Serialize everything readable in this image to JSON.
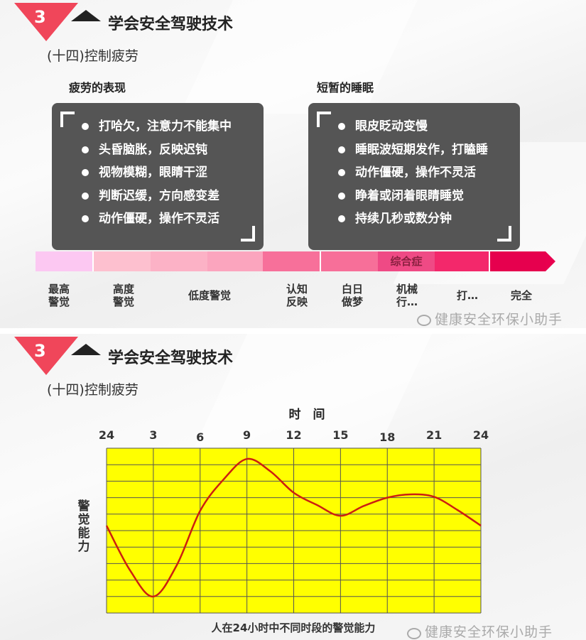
{
  "slide1": {
    "badge": "3",
    "title": "学会安全驾驶技术",
    "subtitle": "(十四)控制疲劳",
    "left": {
      "heading": "疲劳的表现",
      "items": [
        "打哈欠，注意力不能集中",
        "头昏脑胀，反映迟钝",
        "视物模糊，眼睛干涩",
        "判断迟缓，方向感变差",
        "动作僵硬，操作不灵活"
      ]
    },
    "right": {
      "heading": "短暂的睡眠",
      "items": [
        "眼皮眨动变慢",
        "睡眠波短期发作，打瞌睡",
        "动作僵硬，操作不灵活",
        "睁着或闭着眼睛睡觉",
        "持续几秒或数分钟"
      ]
    },
    "bar": {
      "segment_colors": [
        "#fcc8f2",
        "#fdc0cf",
        "#fcb2c6",
        "#fba5be",
        "#f7709a",
        "#f76f99",
        "#ef4a85",
        "#f3286b",
        "#e6004e"
      ],
      "segment_label": "综合症"
    },
    "stage_labels": [
      "最高\n警觉",
      "高度\n警觉",
      "低度警觉",
      "认知\n反映",
      "白日\n做梦",
      "机械\n行…",
      "打…",
      "完全"
    ],
    "watermark": "健康安全环保小助手"
  },
  "slide2": {
    "badge": "3",
    "title": "学会安全驾驶技术",
    "subtitle": "(十四)控制疲劳",
    "watermark": "健康安全环保小助手"
  },
  "chart_data": {
    "type": "line",
    "title": "人在24小时中不同时段的警觉能力",
    "xlabel": "时　间",
    "ylabel": "警觉能力",
    "xtick_labels": [
      "24",
      "3",
      "6",
      "9",
      "12",
      "15",
      "18",
      "21",
      "24"
    ],
    "xlim": [
      0,
      24
    ],
    "ylim": [
      0,
      10
    ],
    "grid": true,
    "background_color": "#ffff00",
    "line_color": "#cc1f10",
    "x": [
      0,
      1.5,
      3,
      4.5,
      6,
      7.5,
      9,
      10.5,
      12,
      13.5,
      15,
      16.5,
      18,
      19.5,
      21,
      22.5,
      24
    ],
    "y": [
      5.3,
      2.6,
      1.0,
      2.9,
      6.2,
      8.1,
      9.35,
      8.6,
      7.3,
      6.55,
      5.9,
      6.5,
      7.0,
      7.2,
      7.05,
      6.25,
      5.3
    ]
  }
}
